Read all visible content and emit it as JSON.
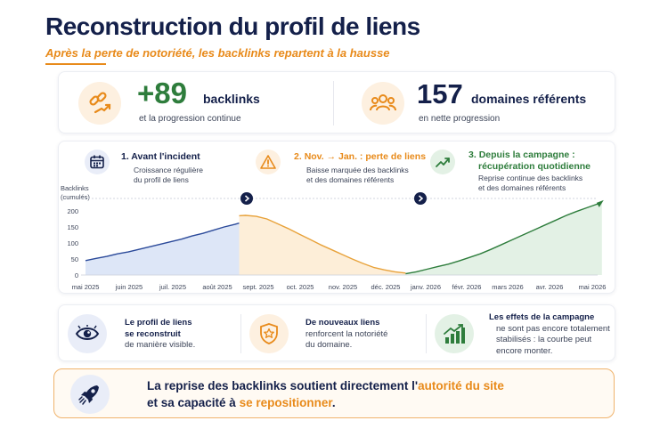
{
  "header": {
    "title": "Reconstruction du profil de liens",
    "subtitle": "Après la perte de notoriété, les backlinks repartent à la hausse"
  },
  "stats": [
    {
      "icon": "link-growth-icon",
      "value": "+89",
      "label": "backlinks",
      "sub": "et la progression continue",
      "value_color": "#2e7d3c"
    },
    {
      "icon": "people-group-icon",
      "value": "157",
      "label": "domaines référents",
      "sub": "en nette progression",
      "value_color": "#14204a"
    }
  ],
  "phases": [
    {
      "number": "1.",
      "title": "Avant l'incident",
      "desc": [
        "Croissance régulière",
        "du profil de liens"
      ],
      "color": "#14204a",
      "icon": "calendar-icon"
    },
    {
      "number": "2.",
      "title": "Nov. → Jan. : perte de liens",
      "desc": [
        "Baisse marquée des backlinks",
        "et des domaines référents"
      ],
      "color": "#e88a1a",
      "icon": "warning-icon"
    },
    {
      "number": "3.",
      "title": "Depuis la campagne :",
      "title2": "récupération quotidienne",
      "desc": [
        "Reprise continue des backlinks",
        "et des domaines référents"
      ],
      "color": "#2e7d3c",
      "icon": "trend-up-icon"
    }
  ],
  "chart_data": {
    "type": "line",
    "ylabel": "Backlinks\n(cumulés)",
    "ylabel_lines": [
      "Backlinks",
      "(cumulés)"
    ],
    "ylim": [
      0,
      200
    ],
    "yticks": [
      "200",
      "150",
      "100",
      "50",
      "0"
    ],
    "xtick_labels": [
      "mai 2025",
      "juin 2025",
      "juil. 2025",
      "août 2025",
      "sept. 2025",
      "oct. 2025",
      "nov. 2025",
      "déc. 2025",
      "janv. 2026",
      "févr. 2026",
      "mars 2026",
      "avr. 2026",
      "mai 2026"
    ],
    "series": [
      {
        "phase": "before",
        "color": "#2b4a9a",
        "fill": "#dde6f7",
        "points": [
          [
            0,
            45
          ],
          [
            0.25,
            52
          ],
          [
            0.5,
            58
          ],
          [
            0.75,
            66
          ],
          [
            1,
            72
          ],
          [
            1.25,
            80
          ],
          [
            1.5,
            88
          ],
          [
            1.75,
            96
          ],
          [
            2,
            104
          ],
          [
            2.25,
            112
          ],
          [
            2.5,
            122
          ],
          [
            2.75,
            130
          ],
          [
            3,
            140
          ],
          [
            3.25,
            150
          ],
          [
            3.5,
            158
          ],
          [
            3.6,
            162
          ]
        ]
      },
      {
        "phase": "loss",
        "color": "#e8a23a",
        "fill": "#fdeed8",
        "points": [
          [
            3.6,
            185
          ],
          [
            3.75,
            186
          ],
          [
            4,
            183
          ],
          [
            4.25,
            175
          ],
          [
            4.5,
            160
          ],
          [
            4.75,
            145
          ],
          [
            5,
            128
          ],
          [
            5.25,
            112
          ],
          [
            5.5,
            95
          ],
          [
            5.75,
            80
          ],
          [
            6,
            65
          ],
          [
            6.25,
            50
          ],
          [
            6.5,
            36
          ],
          [
            6.75,
            24
          ],
          [
            7,
            16
          ],
          [
            7.25,
            10
          ],
          [
            7.5,
            6
          ]
        ]
      },
      {
        "phase": "recovery",
        "color": "#2e7d3c",
        "fill": "#e3f1e5",
        "points": [
          [
            7.5,
            4
          ],
          [
            7.75,
            10
          ],
          [
            8,
            18
          ],
          [
            8.25,
            26
          ],
          [
            8.5,
            34
          ],
          [
            8.75,
            44
          ],
          [
            9,
            55
          ],
          [
            9.25,
            66
          ],
          [
            9.5,
            80
          ],
          [
            9.75,
            95
          ],
          [
            10,
            110
          ],
          [
            10.25,
            125
          ],
          [
            10.5,
            140
          ],
          [
            10.75,
            155
          ],
          [
            11,
            170
          ],
          [
            11.25,
            185
          ],
          [
            11.5,
            198
          ],
          [
            11.75,
            210
          ],
          [
            12,
            222
          ],
          [
            12.1,
            228
          ]
        ]
      }
    ]
  },
  "messages": [
    {
      "icon": "eye-icon",
      "lines": [
        "Le profil de liens",
        "se reconstruit",
        "de manière visible."
      ],
      "bold": 2
    },
    {
      "icon": "shield-star-icon",
      "lines": [
        "De nouveaux liens",
        "renforcent la notoriété",
        "du domaine."
      ],
      "bold": 1
    },
    {
      "icon": "bar-chart-icon",
      "lines": [
        "Les effets de la campagne",
        "ne sont pas encore totalement",
        "stabilisés : la courbe peut",
        "encore monter."
      ],
      "bold": 1
    }
  ],
  "banner": {
    "icon": "rocket-icon",
    "line1_a": "La reprise des backlinks soutient directement l'",
    "line1_b": "autorité du site",
    "line2_a": "et sa capacité à ",
    "line2_b": "se repositionner",
    "line2_c": "."
  },
  "colors": {
    "navy": "#14204a",
    "orange": "#e88a1a",
    "green": "#2e7d3c",
    "blue": "#2b4a9a"
  }
}
